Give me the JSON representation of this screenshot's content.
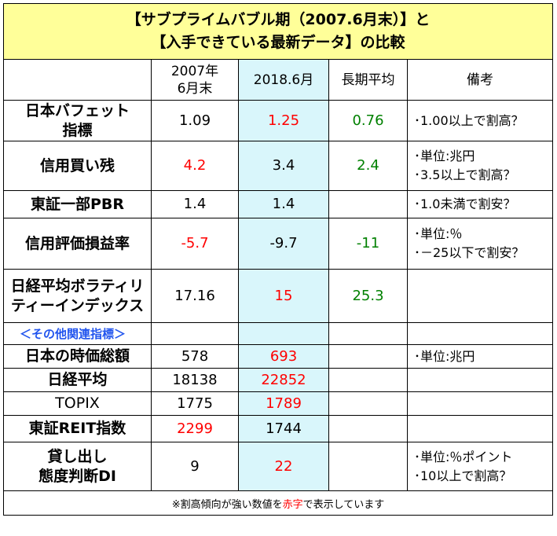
{
  "title": {
    "line1": "【サブプライムバブル期（2007.6月末）】と",
    "line2": "【入手できている最新データ】の比較"
  },
  "header": {
    "col2007_line1": "2007年",
    "col2007_line2": "6月末",
    "col2018": "2018.6月",
    "colavg": "長期平均",
    "colnote": "備考"
  },
  "rows": [
    {
      "label1": "日本バフェット",
      "label2": "指標",
      "v2007": "1.09",
      "v2018": "1.25",
      "avg": "0.76",
      "note1": "･1.00以上で割高？",
      "note2": ""
    },
    {
      "label1": "信用買い残",
      "label2": "",
      "v2007": "4.2",
      "v2018": "3.4",
      "avg": "2.4",
      "note1": "･単位:兆円",
      "note2": "･3.5以上で割高？"
    },
    {
      "label1": "東証一部PBR",
      "label2": "",
      "v2007": "1.4",
      "v2018": "1.4",
      "avg": "",
      "note1": "･1.0未満で割安？",
      "note2": ""
    },
    {
      "label1": "信用評価損益率",
      "label2": "",
      "v2007": "-5.7",
      "v2018": "-9.7",
      "avg": "-11",
      "note1": "･単位:％",
      "note2": "･－25以下で割安？"
    },
    {
      "label1": "日経平均ボラティリ",
      "label2": "ティーインデックス",
      "v2007": "17.16",
      "v2018": "15",
      "avg": "25.3",
      "note1": "",
      "note2": ""
    }
  ],
  "subheader": "＜その他関連指標＞",
  "rows2": [
    {
      "label1": "日本の時価総額",
      "label2": "",
      "v2007": "578",
      "v2018": "693",
      "note1": "･単位:兆円",
      "note2": ""
    },
    {
      "label1": "日経平均",
      "label2": "",
      "v2007": "18138",
      "v2018": "22852",
      "note1": "",
      "note2": ""
    },
    {
      "label1": "TOPIX",
      "label2": "",
      "v2007": "1775",
      "v2018": "1789",
      "note1": "",
      "note2": ""
    },
    {
      "label1": "東証REIT指数",
      "label2": "",
      "v2007": "2299",
      "v2018": "1744",
      "note1": "",
      "note2": ""
    },
    {
      "label1": "貸し出し",
      "label2": "態度判断DI",
      "v2007": "9",
      "v2018": "22",
      "note1": "･単位:％ポイント",
      "note2": "･10以上で割高？"
    }
  ],
  "footer": {
    "before": "※割高傾向が強い数値を",
    "red": "赤字",
    "after": "で表示しています"
  },
  "colors": {
    "highlight_red": "#ff0000",
    "average_green": "#008000",
    "title_bg": "#ffff99",
    "col2018_bg": "#d9f6fb",
    "subheader_blue": "#2255ee"
  }
}
